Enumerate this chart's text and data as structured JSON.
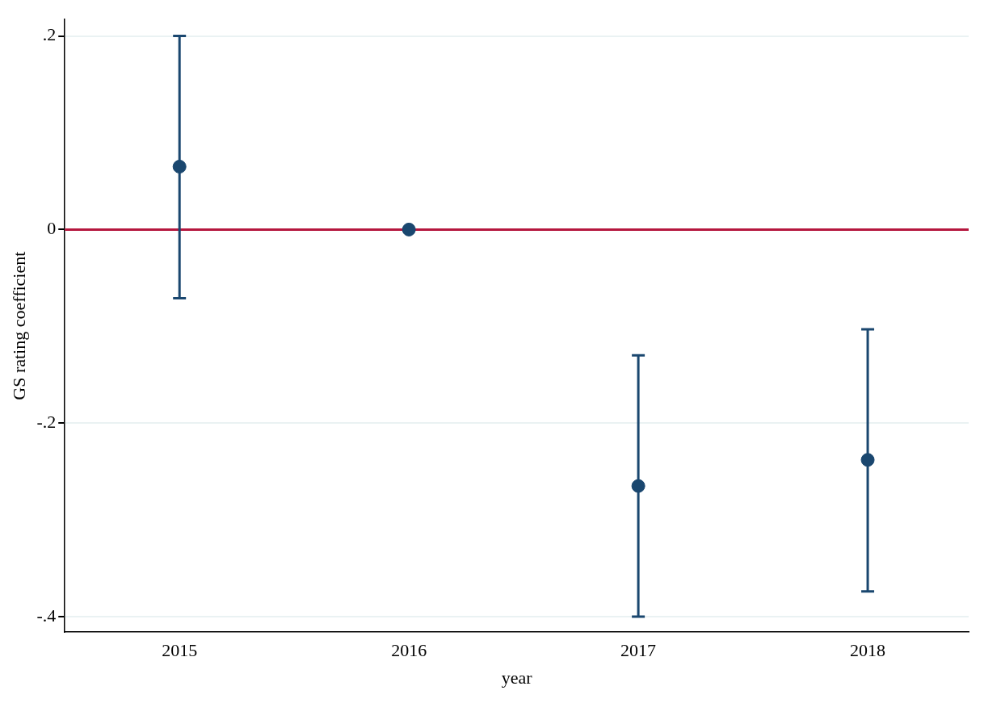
{
  "chart_data": {
    "type": "scatter",
    "xlabel": "year",
    "ylabel": "GS rating coefficient",
    "x": [
      2015,
      2016,
      2017,
      2018
    ],
    "series": [
      {
        "color": "#1a476f",
        "values": [
          0.065,
          0,
          -0.265,
          -0.238
        ],
        "errors": [
          [
            -0.071,
            0.2
          ],
          null,
          [
            -0.4,
            -0.13
          ],
          [
            -0.374,
            -0.103
          ]
        ]
      }
    ],
    "xlim": [
      2014.5,
      2018.44
    ],
    "xticks": [
      2015,
      2016,
      2017,
      2018
    ],
    "ylim": [
      -0.416,
      0.217
    ],
    "yticks": [
      {
        "value": -0.4,
        "label": "-.4"
      },
      {
        "value": -0.2,
        "label": "-.2"
      },
      {
        "value": 0,
        "label": "0"
      },
      {
        "value": 0.2,
        "label": ".2"
      }
    ],
    "grid": "y",
    "marker": "circle",
    "ref_lines": [
      {
        "axis": "y",
        "value": 0,
        "color": "#b5173e"
      }
    ]
  }
}
